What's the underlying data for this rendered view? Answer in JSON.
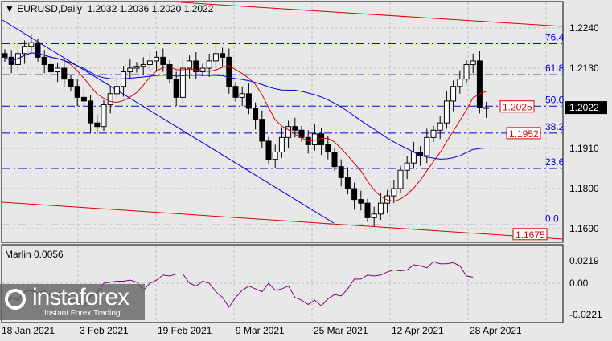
{
  "header": {
    "symbol": "EURUSD,Daily",
    "ohlc": "1.2032 1.2036 1.2020 1.2022"
  },
  "price_axis": {
    "ticks": [
      "1.2240",
      "1.2130",
      "1.1910",
      "1.1800",
      "1.1690"
    ],
    "current": "1.2022"
  },
  "fibo": {
    "levels": [
      {
        "label": "76.4",
        "price": 1.2197
      },
      {
        "label": "61.8",
        "price": 1.2112
      },
      {
        "label": "50.0",
        "price": 1.2026
      },
      {
        "label": "38.2",
        "price": 1.1952
      },
      {
        "label": "23.6",
        "price": 1.1855
      },
      {
        "label": "0.0",
        "price": 1.17
      }
    ]
  },
  "price_labels": [
    {
      "text": "1.2025",
      "price": 1.2025
    },
    {
      "text": "1.1952",
      "price": 1.1952
    },
    {
      "text": "1.1675",
      "price": 1.1675
    }
  ],
  "indicator": {
    "label": "Marlin 0.0056",
    "ticks": [
      "0.0219",
      "0.00",
      "-0.0221"
    ]
  },
  "dates": [
    "18 Jan 2021",
    "3 Feb 2021",
    "19 Feb 2021",
    "9 Mar 2021",
    "25 Mar 2021",
    "12 Apr 2021",
    "28 Apr 2021"
  ],
  "logo": {
    "name": "instaforex",
    "tagline": "Instant Forex Trading"
  },
  "colors": {
    "bull": "#ffffff",
    "bear": "#000000",
    "ma_fast": "#e00000",
    "ma_slow": "#0000e0",
    "marlin": "#800080",
    "fibo": "#0000e0"
  },
  "chart_data": {
    "type": "candlestick",
    "closes": [
      1.216,
      1.214,
      1.217,
      1.219,
      1.22,
      1.216,
      1.214,
      1.212,
      1.213,
      1.21,
      1.208,
      1.205,
      1.204,
      1.198,
      1.197,
      1.203,
      1.206,
      1.208,
      1.212,
      1.213,
      1.2135,
      1.214,
      1.215,
      1.216,
      1.214,
      1.21,
      1.205,
      1.213,
      1.215,
      1.212,
      1.213,
      1.215,
      1.217,
      1.216,
      1.208,
      1.205,
      1.206,
      1.202,
      1.199,
      1.193,
      1.188,
      1.19,
      1.194,
      1.197,
      1.196,
      1.194,
      1.192,
      1.195,
      1.192,
      1.19,
      1.186,
      1.183,
      1.18,
      1.177,
      1.176,
      1.172,
      1.173,
      1.176,
      1.178,
      1.18,
      1.185,
      1.187,
      1.19,
      1.189,
      1.194,
      1.196,
      1.198,
      1.204,
      1.208,
      1.21,
      1.214,
      1.215,
      1.2022,
      1.2022
    ],
    "marlin": [
      -0.015,
      -0.01,
      -0.012,
      -0.006,
      -0.005,
      -0.007,
      -0.005,
      -0.009,
      -0.007,
      -0.006,
      -0.012,
      -0.013,
      -0.016,
      -0.009,
      -0.007,
      0.0,
      0.001,
      0.002,
      0.002,
      0.003,
      0.001,
      -0.005,
      0.0,
      0.003,
      0.008,
      0.007,
      0.009,
      0.009,
      0.0,
      -0.002,
      0.002,
      0.0,
      -0.006,
      -0.01,
      -0.017,
      -0.01,
      -0.005,
      -0.002,
      -0.004,
      -0.006,
      0.0,
      -0.005,
      -0.004,
      -0.002,
      -0.01,
      -0.012,
      -0.015,
      -0.012,
      -0.016,
      -0.011,
      -0.008,
      -0.009,
      -0.004,
      0.004,
      0.004,
      0.008,
      0.007,
      0.008,
      0.011,
      0.013,
      0.012,
      0.013,
      0.018,
      0.017,
      0.015,
      0.021,
      0.019,
      0.019,
      0.02,
      0.017,
      0.007,
      0.006
    ],
    "price_range": [
      1.166,
      1.229
    ],
    "marlin_range": [
      -0.0221,
      0.0219
    ]
  }
}
